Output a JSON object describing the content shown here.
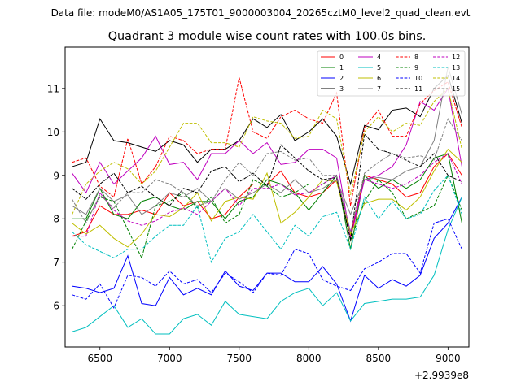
{
  "header": {
    "suptitle": "Data file: modeM0/AS1A05_175T01_9000003004_20265cztM0_level2_quad_clean.evt"
  },
  "chart_data": {
    "type": "line",
    "title": "Quadrant 3 module wise count rates with 100.0s bins.",
    "xlabel": "",
    "ylabel": "",
    "offset_label": "+2.9939e8",
    "xlim": [
      6250,
      9150
    ],
    "ylim": [
      5.05,
      11.95
    ],
    "xticks": [
      6500,
      7000,
      7500,
      8000,
      8500,
      9000
    ],
    "yticks": [
      6,
      7,
      8,
      9,
      10,
      11
    ],
    "grid": false,
    "legend_position": "top-right",
    "x": [
      6300,
      6400,
      6500,
      6600,
      6700,
      6800,
      6900,
      7000,
      7100,
      7200,
      7300,
      7400,
      7500,
      7600,
      7700,
      7800,
      7900,
      8000,
      8100,
      8200,
      8300,
      8400,
      8500,
      8600,
      8700,
      8800,
      8900,
      9000,
      9100
    ],
    "series": [
      {
        "name": "0",
        "color": "#ff0000",
        "dash": "solid",
        "values": [
          7.6,
          7.7,
          8.3,
          8.1,
          8.1,
          8.2,
          8.1,
          8.6,
          8.3,
          8.4,
          8.0,
          8.1,
          8.5,
          8.8,
          8.8,
          9.1,
          8.6,
          8.5,
          8.6,
          8.9,
          7.6,
          9.0,
          8.9,
          8.8,
          8.5,
          8.6,
          9.2,
          9.5,
          9.0
        ]
      },
      {
        "name": "1",
        "color": "#008000",
        "dash": "solid",
        "values": [
          8.0,
          8.0,
          8.7,
          8.1,
          8.0,
          8.4,
          8.5,
          8.3,
          8.2,
          8.4,
          8.4,
          8.0,
          8.4,
          8.5,
          8.9,
          8.8,
          8.6,
          8.2,
          8.6,
          9.0,
          7.3,
          9.0,
          8.7,
          8.9,
          8.7,
          8.9,
          9.4,
          9.5,
          7.9
        ]
      },
      {
        "name": "2",
        "color": "#0000ff",
        "dash": "solid",
        "values": [
          6.45,
          6.4,
          6.3,
          6.4,
          7.15,
          6.05,
          6.0,
          6.65,
          6.25,
          6.4,
          6.25,
          6.8,
          6.45,
          6.35,
          6.75,
          6.75,
          6.55,
          6.55,
          6.9,
          6.5,
          5.65,
          6.7,
          6.4,
          6.6,
          6.45,
          6.7,
          7.55,
          7.9,
          8.5
        ]
      },
      {
        "name": "3",
        "color": "#000000",
        "dash": "solid",
        "values": [
          9.2,
          9.3,
          10.3,
          9.8,
          9.75,
          9.65,
          9.55,
          9.8,
          9.7,
          9.3,
          9.6,
          9.6,
          9.8,
          10.3,
          10.1,
          10.4,
          9.8,
          10.0,
          10.3,
          9.9,
          8.8,
          10.15,
          10.05,
          10.5,
          10.55,
          10.35,
          11.0,
          11.3,
          10.2
        ]
      },
      {
        "name": "4",
        "color": "#bf00bf",
        "dash": "solid",
        "values": [
          9.05,
          8.6,
          9.3,
          8.8,
          9.1,
          9.4,
          9.9,
          9.25,
          9.3,
          8.9,
          9.5,
          9.5,
          9.8,
          9.5,
          9.75,
          9.25,
          9.3,
          9.6,
          9.6,
          9.4,
          7.55,
          8.9,
          9.0,
          9.2,
          9.7,
          10.7,
          10.5,
          11.0,
          9.2
        ]
      },
      {
        "name": "5",
        "color": "#00bfbf",
        "dash": "solid",
        "values": [
          5.4,
          5.5,
          5.75,
          6.0,
          5.5,
          5.7,
          5.35,
          5.35,
          5.7,
          5.8,
          5.55,
          6.1,
          5.8,
          5.75,
          5.7,
          6.1,
          6.3,
          6.4,
          6.0,
          6.3,
          5.65,
          6.05,
          6.1,
          6.15,
          6.15,
          6.2,
          6.7,
          7.75,
          8.5
        ]
      },
      {
        "name": "6",
        "color": "#bfbf00",
        "dash": "solid",
        "values": [
          7.9,
          7.65,
          7.85,
          7.55,
          7.35,
          7.65,
          8.1,
          8.05,
          8.25,
          8.6,
          7.95,
          8.4,
          8.5,
          8.45,
          9.05,
          7.9,
          8.15,
          8.5,
          8.9,
          8.85,
          7.65,
          8.35,
          8.45,
          8.45,
          8.2,
          8.5,
          9.1,
          9.6,
          9.3
        ]
      },
      {
        "name": "7",
        "color": "#808080",
        "dash": "solid",
        "values": [
          8.3,
          8.1,
          8.7,
          8.4,
          8.55,
          8.1,
          8.3,
          8.6,
          8.5,
          8.7,
          8.4,
          8.7,
          8.45,
          8.6,
          8.8,
          8.6,
          8.9,
          8.6,
          8.7,
          8.9,
          8.1,
          8.9,
          8.95,
          8.9,
          9.1,
          9.2,
          9.8,
          11.5,
          10.4
        ]
      },
      {
        "name": "8",
        "color": "#ff0000",
        "dash": "dashed",
        "values": [
          9.3,
          9.4,
          8.75,
          8.5,
          9.85,
          8.8,
          9.2,
          9.9,
          9.8,
          9.5,
          9.6,
          9.6,
          11.25,
          10.0,
          9.85,
          10.35,
          10.5,
          10.3,
          10.2,
          10.9,
          8.3,
          10.1,
          10.5,
          9.9,
          9.9,
          10.65,
          10.95,
          11.15,
          10.1
        ]
      },
      {
        "name": "9",
        "color": "#008000",
        "dash": "dashed",
        "values": [
          7.3,
          7.95,
          8.5,
          8.4,
          7.75,
          7.1,
          8.3,
          8.4,
          8.6,
          8.25,
          8.5,
          7.9,
          8.1,
          8.9,
          8.75,
          8.5,
          8.6,
          8.8,
          8.8,
          9.0,
          7.5,
          8.4,
          8.9,
          8.6,
          8.0,
          8.15,
          8.3,
          9.0,
          8.2
        ]
      },
      {
        "name": "10",
        "color": "#0000ff",
        "dash": "dashed",
        "values": [
          6.25,
          6.15,
          6.5,
          5.95,
          6.7,
          6.65,
          6.45,
          6.8,
          6.5,
          6.6,
          6.3,
          6.75,
          6.55,
          6.3,
          6.75,
          6.7,
          7.3,
          7.2,
          6.6,
          6.45,
          6.35,
          6.85,
          7.0,
          7.2,
          7.2,
          6.75,
          7.9,
          8.0,
          7.3
        ]
      },
      {
        "name": "11",
        "color": "#000000",
        "dash": "dashed",
        "values": [
          8.7,
          8.45,
          8.8,
          9.05,
          8.6,
          8.75,
          8.5,
          8.3,
          8.7,
          8.6,
          9.1,
          9.2,
          8.85,
          9.05,
          8.75,
          9.7,
          9.4,
          9.1,
          8.9,
          8.95,
          7.5,
          9.95,
          9.6,
          9.5,
          9.35,
          9.2,
          9.5,
          9.0,
          8.85
        ]
      },
      {
        "name": "12",
        "color": "#bf00bf",
        "dash": "dashed",
        "values": [
          7.6,
          7.6,
          8.6,
          8.2,
          7.95,
          7.85,
          7.95,
          8.15,
          8.25,
          8.1,
          8.4,
          8.7,
          8.3,
          8.7,
          8.7,
          8.8,
          8.55,
          8.6,
          8.8,
          9.0,
          7.7,
          8.9,
          8.8,
          8.7,
          8.8,
          9.0,
          9.3,
          9.5,
          8.8
        ]
      },
      {
        "name": "13",
        "color": "#00bfbf",
        "dash": "dashed",
        "values": [
          7.7,
          7.4,
          7.25,
          7.1,
          7.3,
          7.3,
          7.6,
          7.85,
          7.85,
          8.3,
          7.0,
          7.55,
          7.7,
          8.1,
          7.7,
          7.3,
          7.85,
          7.6,
          8.05,
          8.15,
          7.3,
          8.5,
          8.0,
          8.4,
          8.0,
          8.1,
          8.65,
          9.0,
          8.1
        ]
      },
      {
        "name": "14",
        "color": "#bfbf00",
        "dash": "dashed",
        "values": [
          8.1,
          8.8,
          9.1,
          9.3,
          9.15,
          8.8,
          9.1,
          9.65,
          10.2,
          10.2,
          9.75,
          9.75,
          9.65,
          10.35,
          10.25,
          10.2,
          9.85,
          9.9,
          10.5,
          10.3,
          8.55,
          10.0,
          10.35,
          10.0,
          10.2,
          10.15,
          10.7,
          11.0,
          9.6
        ]
      },
      {
        "name": "15",
        "color": "#808080",
        "dash": "dashed",
        "values": [
          8.45,
          7.9,
          8.55,
          8.25,
          8.6,
          8.6,
          8.9,
          8.8,
          8.6,
          8.3,
          8.4,
          8.9,
          9.3,
          9.0,
          9.5,
          9.55,
          9.35,
          9.4,
          9.0,
          9.0,
          7.7,
          9.05,
          9.3,
          9.5,
          9.4,
          9.45,
          9.35,
          10.3,
          9.8
        ]
      }
    ]
  }
}
